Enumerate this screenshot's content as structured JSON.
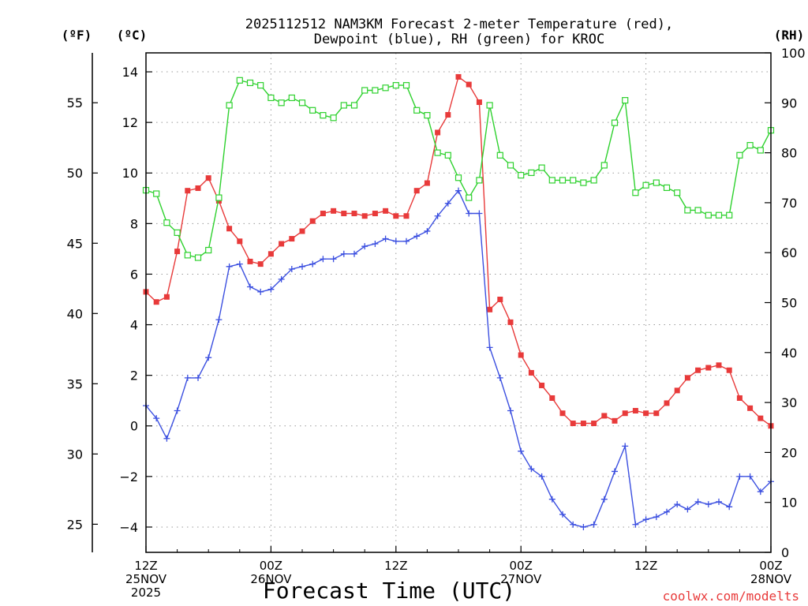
{
  "chart_data": {
    "type": "line",
    "title_line1": "2025112512 NAM3KM Forecast 2-meter Temperature (red),",
    "title_line2": "Dewpoint (blue), RH (green) for KROC",
    "xlabel": "Forecast Time (UTC)",
    "credit": "coolwx.com/modelts",
    "unit_f": "(ºF)",
    "unit_c": "(ºC)",
    "unit_rh": "(RH)",
    "x_range_hours": [
      0,
      60
    ],
    "ylim_c": [
      -5,
      14.75
    ],
    "ylim_rh": [
      0,
      100
    ],
    "y_ticks_c": [
      "14",
      "12",
      "10",
      "8",
      "6",
      "4",
      "2",
      "0",
      "−2",
      "−4"
    ],
    "y_ticks_f": [
      "55",
      "50",
      "45",
      "40",
      "35",
      "30",
      "25"
    ],
    "y_ticks_rh": [
      "100",
      "90",
      "80",
      "70",
      "60",
      "50",
      "40",
      "30",
      "20",
      "10",
      "0"
    ],
    "x_ticks": [
      {
        "hour": 0,
        "line1": "12Z",
        "line2": "25NOV",
        "line3": "2025"
      },
      {
        "hour": 12,
        "line1": "00Z",
        "line2": "26NOV",
        "line3": ""
      },
      {
        "hour": 24,
        "line1": "12Z",
        "line2": "",
        "line3": ""
      },
      {
        "hour": 36,
        "line1": "00Z",
        "line2": "27NOV",
        "line3": ""
      },
      {
        "hour": 48,
        "line1": "12Z",
        "line2": "",
        "line3": ""
      },
      {
        "hour": 60,
        "line1": "00Z",
        "line2": "28NOV",
        "line3": ""
      }
    ],
    "colors": {
      "temperature": "#e83a3a",
      "dewpoint": "#3b4fe0",
      "rh": "#2ed12e"
    },
    "series": [
      {
        "name": "Temperature (red)",
        "unit": "C",
        "marker": "filled-square",
        "values": [
          5.3,
          4.9,
          5.1,
          6.9,
          9.3,
          9.4,
          9.8,
          8.9,
          7.8,
          7.3,
          6.5,
          6.4,
          6.8,
          7.2,
          7.4,
          7.7,
          8.1,
          8.4,
          8.5,
          8.4,
          8.4,
          8.3,
          8.4,
          8.5,
          8.3,
          8.3,
          9.3,
          9.6,
          11.6,
          12.3,
          13.8,
          13.5,
          12.8,
          4.6,
          5.0,
          4.1,
          2.8,
          2.1,
          1.6,
          1.1,
          0.5,
          0.1,
          0.1,
          0.1,
          0.4,
          0.2,
          0.5,
          0.6,
          0.5,
          0.5,
          0.9,
          1.4,
          1.9,
          2.2,
          2.3,
          2.4,
          2.2,
          1.1,
          0.7,
          0.3,
          0.0
        ]
      },
      {
        "name": "Dewpoint (blue)",
        "unit": "C",
        "marker": "plus",
        "values": [
          0.8,
          0.3,
          -0.5,
          0.6,
          1.9,
          1.9,
          2.7,
          4.2,
          6.3,
          6.4,
          5.5,
          5.3,
          5.4,
          5.8,
          6.2,
          6.3,
          6.4,
          6.6,
          6.6,
          6.8,
          6.8,
          7.1,
          7.2,
          7.4,
          7.3,
          7.3,
          7.5,
          7.7,
          8.3,
          8.8,
          9.3,
          8.4,
          8.4,
          3.1,
          1.9,
          0.6,
          -1.0,
          -1.7,
          -2.0,
          -2.9,
          -3.5,
          -3.9,
          -4.0,
          -3.9,
          -2.9,
          -1.8,
          -0.8,
          -3.9,
          -3.7,
          -3.6,
          -3.4,
          -3.1,
          -3.3,
          -3.0,
          -3.1,
          -3.0,
          -3.2,
          -2.0,
          -2.0,
          -2.6,
          -2.2
        ]
      },
      {
        "name": "RH (green)",
        "unit": "%",
        "marker": "open-square",
        "values": [
          72.5,
          71.8,
          66.0,
          64.0,
          59.5,
          59.0,
          60.5,
          71.0,
          89.5,
          94.5,
          94.0,
          93.5,
          91.0,
          90.0,
          91.0,
          90.0,
          88.5,
          87.5,
          87.0,
          89.5,
          89.5,
          92.5,
          92.5,
          93.0,
          93.5,
          93.5,
          88.5,
          87.5,
          80.0,
          79.5,
          75.0,
          71.0,
          74.5,
          89.5,
          79.5,
          77.5,
          75.5,
          76.0,
          77.0,
          74.5,
          74.5,
          74.5,
          74.0,
          74.5,
          77.5,
          86.0,
          90.5,
          72.0,
          73.5,
          74.0,
          73.0,
          72.0,
          68.5,
          68.5,
          67.5,
          67.5,
          67.5,
          79.5,
          81.5,
          80.5,
          84.5
        ]
      }
    ]
  }
}
